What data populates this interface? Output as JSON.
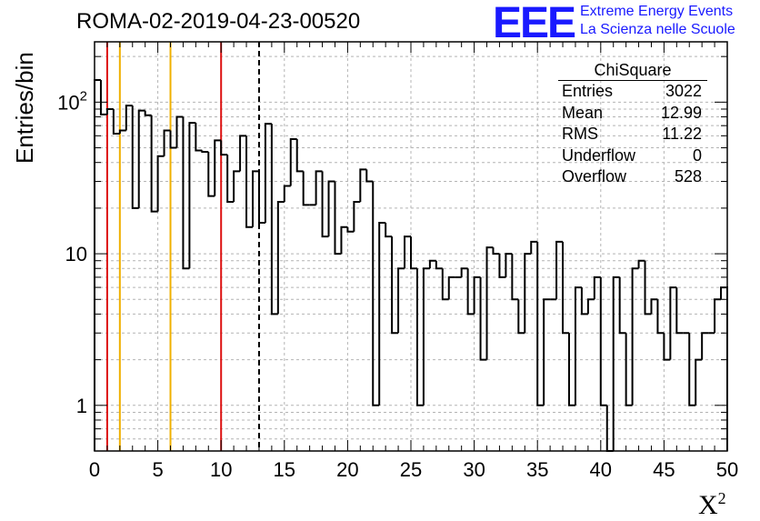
{
  "header": {
    "run_title": "ROMA-02-2019-04-23-00520",
    "logo_text": "EEE",
    "logo_line1": "Extreme Energy Events",
    "logo_line2": "La Scienza nelle Scuole"
  },
  "stats_box": {
    "title": "ChiSquare",
    "rows": [
      {
        "label": "Entries",
        "value": "3022"
      },
      {
        "label": "Mean",
        "value": "12.99"
      },
      {
        "label": "RMS",
        "value": "11.22"
      },
      {
        "label": "Underflow",
        "value": "0"
      },
      {
        "label": "Overflow",
        "value": "528"
      }
    ]
  },
  "colors": {
    "red_line": "#dd1111",
    "orange_line": "#f0b000",
    "histogram": "#000000",
    "grid": "#b4b4b4",
    "logo": "#1a1aff"
  },
  "chart_data": {
    "type": "histogram",
    "ylabel": "Entries/bin",
    "xlabel_main": "X",
    "xlabel_sup": "2",
    "xlim": [
      0,
      50
    ],
    "ylim": [
      0.5,
      250
    ],
    "y_scale": "log",
    "grid": true,
    "bin_width": 0.5,
    "x_ticks": [
      0,
      5,
      10,
      15,
      20,
      25,
      30,
      35,
      40,
      45,
      50
    ],
    "y_ticks": [
      {
        "value": 1,
        "base": "1",
        "exp": ""
      },
      {
        "value": 10,
        "base": "10",
        "exp": ""
      },
      {
        "value": 100,
        "base": "10",
        "exp": "2"
      }
    ],
    "values": [
      140,
      83,
      90,
      62,
      65,
      95,
      20,
      88,
      82,
      19,
      44,
      65,
      50,
      80,
      8,
      73,
      48,
      47,
      24,
      56,
      45,
      22,
      35,
      60,
      15,
      35,
      16,
      72,
      4,
      22,
      28,
      57,
      35,
      21,
      21,
      35,
      13,
      30,
      10,
      15,
      14,
      22,
      36,
      30,
      1,
      16,
      13,
      3,
      8,
      13,
      8,
      1,
      8,
      9,
      8,
      5,
      7,
      7,
      8,
      4,
      7,
      2,
      11,
      10,
      7,
      10,
      5,
      3,
      10,
      12,
      1,
      5,
      5,
      12,
      3,
      1,
      6,
      4,
      5,
      7,
      1,
      0.5,
      7,
      3,
      1,
      8,
      9,
      4,
      5,
      3,
      2,
      6,
      3,
      3,
      1,
      2,
      3,
      3,
      5,
      6
    ],
    "reference_lines": [
      {
        "x": 1,
        "color": "#dd1111",
        "style": "solid"
      },
      {
        "x": 2,
        "color": "#f0b000",
        "style": "solid"
      },
      {
        "x": 6,
        "color": "#f0b000",
        "style": "solid"
      },
      {
        "x": 10,
        "color": "#dd1111",
        "style": "solid"
      },
      {
        "x": 13,
        "color": "#000000",
        "style": "dashed"
      }
    ]
  }
}
